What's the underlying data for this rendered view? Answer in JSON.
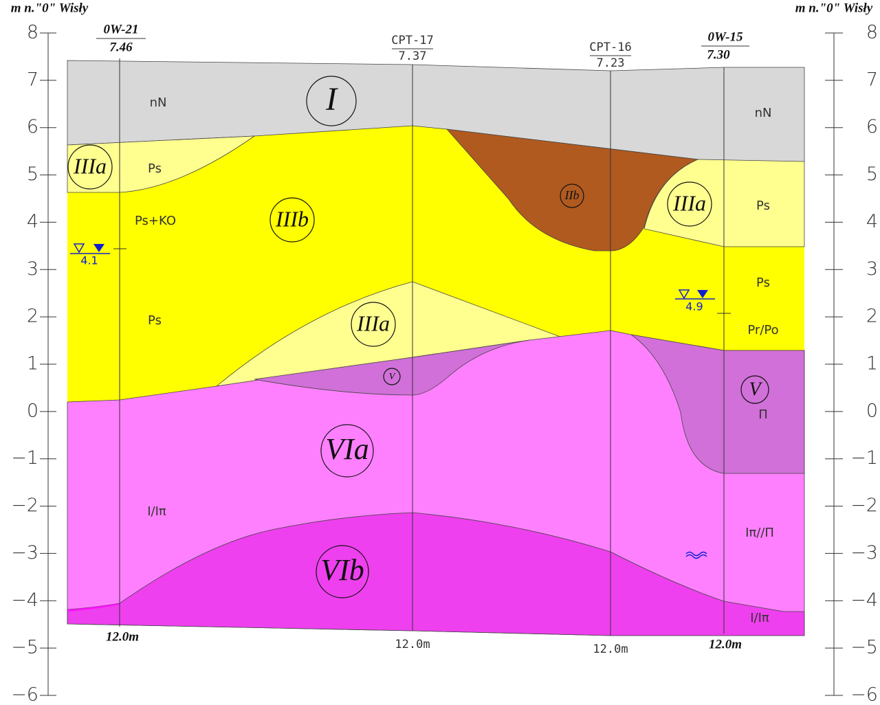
{
  "axis_title_left": "m n.\"0\" Wisły",
  "axis_title_right": "m n.\"0\" Wisły",
  "ticks": [
    "8",
    "7",
    "6",
    "5",
    "4",
    "3",
    "2",
    "1",
    "0",
    "−1",
    "−2",
    "−3",
    "−4",
    "−5",
    "−6"
  ],
  "boreholes": [
    {
      "name": "0W-21",
      "elevation": "7.46",
      "depth": "12.0m"
    },
    {
      "name": "CPT-17",
      "elevation": "7.37",
      "depth": "12.0m"
    },
    {
      "name": "CPT-16",
      "elevation": "7.23",
      "depth": "12.0m"
    },
    {
      "name": "0W-15",
      "elevation": "7.30",
      "depth": "12.0m"
    }
  ],
  "layers": [
    "I",
    "IIIa",
    "IIIb",
    "IIb",
    "IIIa",
    "IIIa",
    "V",
    "V",
    "VIa",
    "VIb"
  ],
  "soils": [
    "nN",
    "nN",
    "Ps",
    "Ps+KO",
    "Ps",
    "Ps",
    "Ps",
    "Pr/Po",
    "Π",
    "I/Iπ",
    "Iπ//Π",
    "I/Iπ"
  ],
  "water_levels": [
    "4.1",
    "4.9"
  ]
}
